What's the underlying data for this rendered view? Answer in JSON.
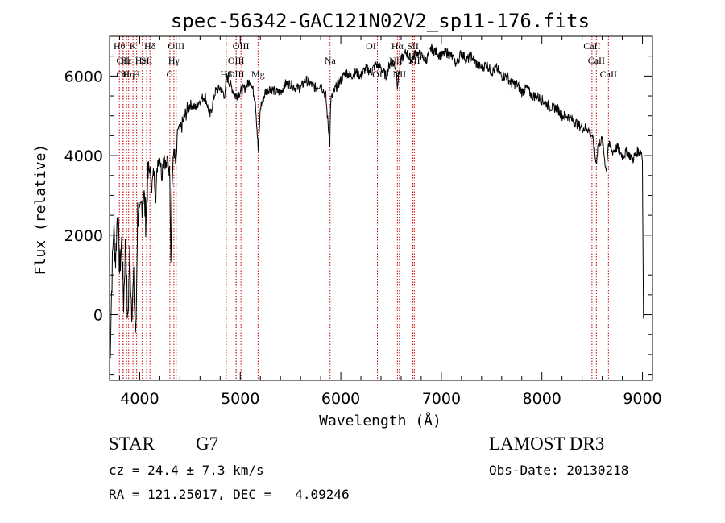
{
  "chart_data": {
    "type": "line",
    "title": "spec-56342-GAC121N02V2_sp11-176.fits",
    "xlabel": "Wavelength (Å)",
    "ylabel": "Flux (relative)",
    "xlim": [
      3700,
      9100
    ],
    "ylim": [
      -1650,
      7000
    ],
    "xticks": [
      4000,
      5000,
      6000,
      7000,
      8000,
      9000
    ],
    "yticks": [
      0,
      2000,
      4000,
      6000
    ],
    "grid": false,
    "line_color": "#000000",
    "marker_color": "#cc0000",
    "series": [
      {
        "x": [
          3700,
          3720,
          3740,
          3760,
          3780,
          3800,
          3820,
          3840,
          3860,
          3880,
          3900,
          3920,
          3940,
          3960,
          3980,
          4000,
          4020,
          4040,
          4060,
          4080,
          4100,
          4120,
          4140,
          4160,
          4180,
          4200,
          4220,
          4240,
          4260,
          4280,
          4300,
          4310,
          4320,
          4340,
          4360,
          4380,
          4400,
          4450,
          4500,
          4550,
          4600,
          4650,
          4700,
          4750,
          4800,
          4850,
          4860,
          4900,
          4950,
          5000,
          5050,
          5100,
          5150,
          5170,
          5180,
          5200,
          5250,
          5300,
          5350,
          5400,
          5450,
          5500,
          5550,
          5600,
          5650,
          5700,
          5750,
          5800,
          5850,
          5890,
          5900,
          5920,
          5950,
          6000,
          6050,
          6100,
          6150,
          6200,
          6250,
          6300,
          6350,
          6400,
          6450,
          6500,
          6550,
          6563,
          6600,
          6650,
          6700,
          6750,
          6800,
          6850,
          6900,
          6950,
          7000,
          7050,
          7100,
          7150,
          7200,
          7250,
          7300,
          7350,
          7400,
          7450,
          7500,
          7550,
          7600,
          7650,
          7700,
          7750,
          7800,
          7850,
          7900,
          7950,
          8000,
          8050,
          8100,
          8150,
          8200,
          8250,
          8300,
          8350,
          8400,
          8450,
          8500,
          8540,
          8560,
          8600,
          8640,
          8660,
          8700,
          8750,
          8800,
          8850,
          8900,
          8950,
          8990,
          9000,
          9010
        ],
        "y": [
          -1600,
          600,
          2200,
          1400,
          2700,
          1100,
          1800,
          300,
          2000,
          -300,
          1500,
          200,
          800,
          -700,
          2600,
          2300,
          2800,
          3100,
          2400,
          3400,
          3700,
          3200,
          3600,
          3000,
          3900,
          4000,
          3500,
          4100,
          3700,
          3900,
          3500,
          1400,
          3200,
          4200,
          3700,
          4700,
          4600,
          5000,
          5300,
          5200,
          5400,
          5500,
          5000,
          5600,
          5700,
          5500,
          6000,
          5800,
          5500,
          5600,
          5700,
          5900,
          5400,
          4500,
          4100,
          5200,
          5600,
          5700,
          5600,
          5600,
          5800,
          5800,
          5700,
          5700,
          5900,
          5800,
          5700,
          5800,
          5500,
          4300,
          5400,
          5500,
          5700,
          5900,
          6100,
          6000,
          6100,
          6000,
          6200,
          6100,
          6300,
          6200,
          6000,
          6400,
          6200,
          5800,
          6400,
          6600,
          6400,
          6600,
          6500,
          6400,
          6700,
          6600,
          6500,
          6600,
          6500,
          6300,
          6600,
          6400,
          6500,
          6300,
          6200,
          6300,
          6100,
          6200,
          6000,
          6000,
          5800,
          5800,
          5600,
          5700,
          5500,
          5500,
          5400,
          5300,
          5200,
          5200,
          5000,
          5000,
          4900,
          4800,
          4700,
          4700,
          4500,
          3800,
          4300,
          4400,
          3600,
          4300,
          4100,
          4200,
          4000,
          4100,
          3900,
          4100,
          4100,
          3900,
          -100
        ]
      }
    ],
    "annotations": [
      {
        "x": 3798,
        "label": "Hθ",
        "row": 0
      },
      {
        "x": 3835,
        "label": "OII",
        "row": 1
      },
      {
        "x": 3835,
        "label": "OII",
        "row": 2
      },
      {
        "x": 3869,
        "label": "Hε",
        "row": 1
      },
      {
        "x": 3890,
        "label": "Hη",
        "row": 2
      },
      {
        "x": 3933,
        "label": "K",
        "row": 0
      },
      {
        "x": 3970,
        "label": "H",
        "row": 2
      },
      {
        "x": 4026,
        "label": "HeI",
        "row": 1
      },
      {
        "x": 4069,
        "label": "SII",
        "row": 1
      },
      {
        "x": 4102,
        "label": "Hδ",
        "row": 0
      },
      {
        "x": 4300,
        "label": "G",
        "row": 2
      },
      {
        "x": 4340,
        "label": "Hγ",
        "row": 1
      },
      {
        "x": 4363,
        "label": "OIII",
        "row": 0
      },
      {
        "x": 4861,
        "label": "Hβ",
        "row": 2
      },
      {
        "x": 4959,
        "label": "OIII",
        "row": 1
      },
      {
        "x": 4959,
        "label": "OIII",
        "row": 2
      },
      {
        "x": 5007,
        "label": "OIII",
        "row": 0
      },
      {
        "x": 5177,
        "label": "Mg",
        "row": 2
      },
      {
        "x": 5893,
        "label": "Na",
        "row": 1
      },
      {
        "x": 6300,
        "label": "OI",
        "row": 0
      },
      {
        "x": 6364,
        "label": "OI",
        "row": 2
      },
      {
        "x": 6548,
        "label": "NII",
        "row": 1
      },
      {
        "x": 6563,
        "label": "Hα",
        "row": 0
      },
      {
        "x": 6583,
        "label": "NII",
        "row": 2
      },
      {
        "x": 6717,
        "label": "SII",
        "row": 0
      },
      {
        "x": 6731,
        "label": "SII",
        "row": 1
      },
      {
        "x": 8498,
        "label": "CaII",
        "row": 0
      },
      {
        "x": 8542,
        "label": "CaII",
        "row": 1
      },
      {
        "x": 8662,
        "label": "CaII",
        "row": 2
      }
    ]
  },
  "info": {
    "object_class": "STAR",
    "subclass": "G7",
    "survey": "LAMOST DR3",
    "redshift": "cz = 24.4 ± 7.3 km/s",
    "obs_date": "Obs-Date: 20130218",
    "coords": "RA = 121.25017, DEC =   4.09246"
  }
}
